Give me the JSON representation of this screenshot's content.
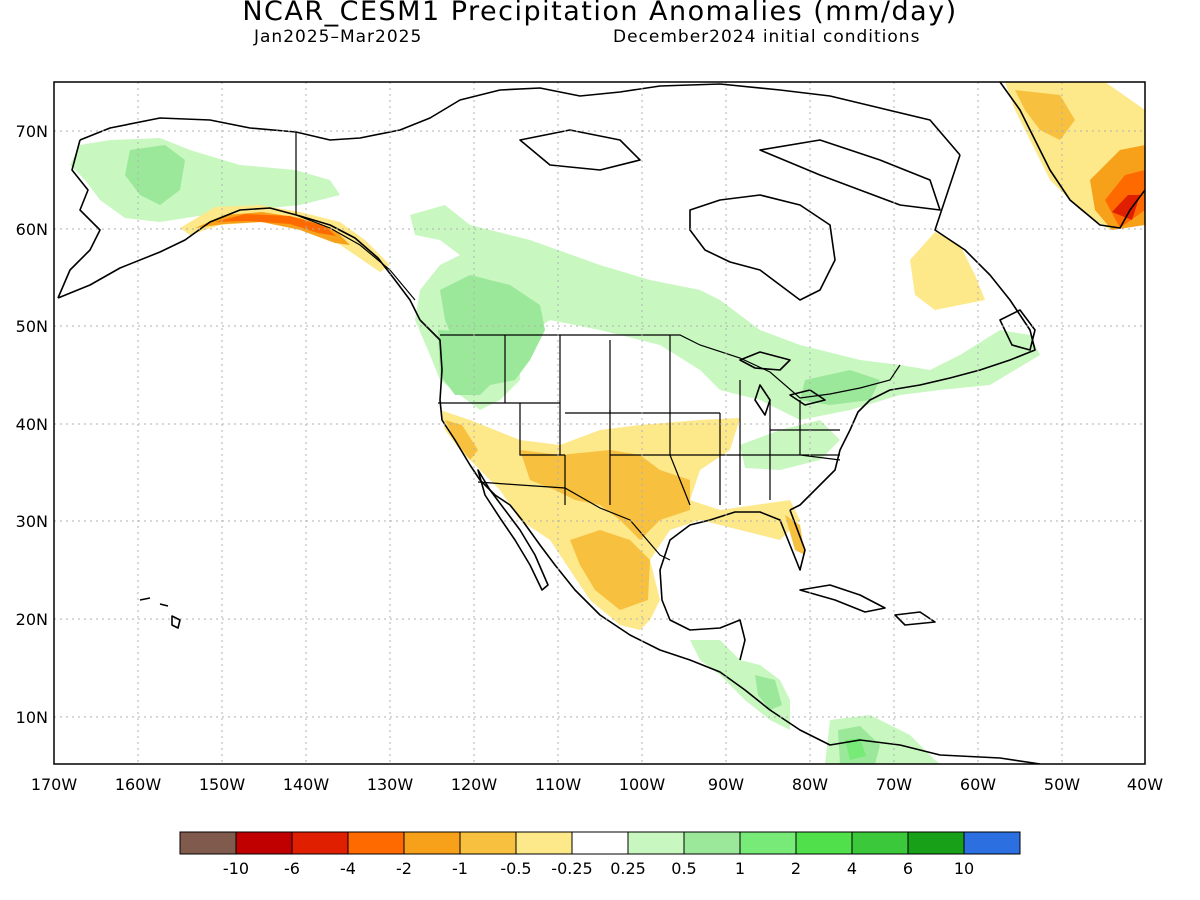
{
  "title": "NCAR_CESM1 Precipitation Anomalies (mm/day)",
  "period": "Jan2025–Mar2025",
  "init": "December2024 initial conditions",
  "lat_labels": [
    "70N",
    "60N",
    "50N",
    "40N",
    "30N",
    "20N",
    "10N"
  ],
  "lon_labels": [
    "170W",
    "160W",
    "150W",
    "140W",
    "130W",
    "120W",
    "110W",
    "100W",
    "90W",
    "80W",
    "70W",
    "60W",
    "50W",
    "40W"
  ],
  "legend": {
    "colors": [
      "#7f5a4d",
      "#c00000",
      "#e01e00",
      "#ff6a00",
      "#f7a11a",
      "#f8c03f",
      "#fde88a",
      "#ffffff",
      "#c8f7c0",
      "#9be89a",
      "#78ea77",
      "#4fe04c",
      "#3cc83b",
      "#18a018",
      "#2b6fe0"
    ],
    "labels": [
      "-10",
      "-6",
      "-4",
      "-2",
      "-1",
      "-0.5",
      "-0.25",
      "0.25",
      "0.5",
      "1",
      "2",
      "4",
      "6",
      "10"
    ]
  },
  "map_colors": {
    "land_outline": "#000000",
    "grid": "#b0b0b0"
  }
}
